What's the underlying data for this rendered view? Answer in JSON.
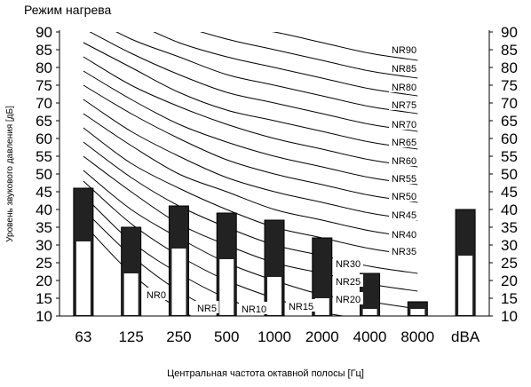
{
  "chart_data": {
    "type": "bar",
    "title": "Режим нагрева",
    "xlabel": "Центральная частота октавной полосы [Гц]",
    "ylabel": "Уровень звукового давления [дБ]",
    "ylim": [
      10,
      90
    ],
    "yticks": [
      10,
      15,
      20,
      25,
      30,
      35,
      40,
      45,
      50,
      55,
      60,
      65,
      70,
      75,
      80,
      85,
      90
    ],
    "categories": [
      "63",
      "125",
      "250",
      "500",
      "1000",
      "2000",
      "4000",
      "8000",
      "dBA"
    ],
    "series": [
      {
        "values": [
          46,
          35,
          41,
          39,
          37,
          32,
          22,
          14,
          40
        ],
        "color": "#222222"
      },
      {
        "values": [
          31,
          22,
          29,
          26,
          21,
          15,
          12,
          12,
          27
        ],
        "color": "#ffffff"
      }
    ],
    "nr_curves": [
      {
        "label": "NR0",
        "values": [
          36,
          22,
          12,
          5,
          0,
          -4,
          -6,
          -8
        ]
      },
      {
        "label": "NR5",
        "values": [
          40,
          27,
          17,
          10,
          5,
          1,
          -1,
          -3
        ]
      },
      {
        "label": "NR10",
        "values": [
          44,
          31,
          22,
          15,
          10,
          6,
          4,
          2
        ]
      },
      {
        "label": "NR15",
        "values": [
          48,
          36,
          27,
          20,
          15,
          11,
          9,
          7
        ]
      },
      {
        "label": "NR20",
        "values": [
          51,
          40,
          32,
          25,
          20,
          16,
          14,
          12
        ]
      },
      {
        "label": "NR25",
        "values": [
          55,
          45,
          36,
          30,
          25,
          22,
          19,
          17
        ]
      },
      {
        "label": "NR30",
        "values": [
          59,
          49,
          41,
          35,
          30,
          27,
          24,
          22
        ]
      },
      {
        "label": "NR35",
        "values": [
          63,
          53,
          46,
          40,
          35,
          32,
          29,
          27
        ]
      },
      {
        "label": "NR40",
        "values": [
          67,
          58,
          50,
          45,
          40,
          37,
          34,
          32
        ]
      },
      {
        "label": "NR45",
        "values": [
          71,
          62,
          55,
          49,
          45,
          42,
          39,
          37
        ]
      },
      {
        "label": "NR50",
        "values": [
          75,
          67,
          60,
          54,
          50,
          47,
          44,
          42
        ]
      },
      {
        "label": "NR55",
        "values": [
          79,
          71,
          64,
          59,
          55,
          52,
          49,
          47
        ]
      },
      {
        "label": "NR60",
        "values": [
          83,
          75,
          69,
          64,
          60,
          57,
          54,
          52
        ]
      },
      {
        "label": "NR65",
        "values": [
          87,
          80,
          73,
          68,
          65,
          62,
          59,
          57
        ]
      },
      {
        "label": "NR70",
        "values": [
          91,
          84,
          78,
          73,
          70,
          67,
          64,
          62
        ]
      },
      {
        "label": "NR75",
        "values": [
          95,
          88,
          83,
          78,
          75,
          72,
          69,
          67
        ]
      },
      {
        "label": "NR80",
        "values": [
          99,
          93,
          87,
          83,
          80,
          77,
          74,
          72
        ]
      },
      {
        "label": "NR85",
        "values": [
          103,
          97,
          92,
          88,
          85,
          82,
          79,
          77
        ]
      },
      {
        "label": "NR90",
        "values": [
          107,
          101,
          96,
          92,
          90,
          87,
          84,
          82
        ]
      }
    ]
  }
}
